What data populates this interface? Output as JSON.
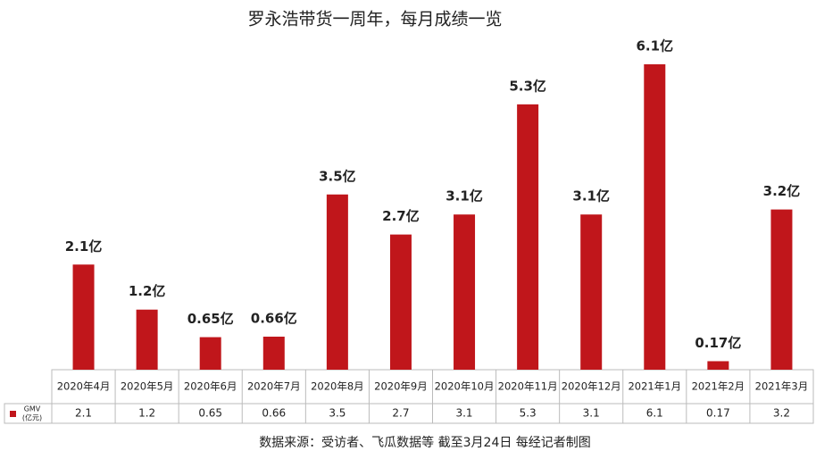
{
  "chart_data": {
    "type": "bar",
    "title": "罗永浩带货一周年，每月成绩一览",
    "categories": [
      "2020年4月",
      "2020年5月",
      "2020年6月",
      "2020年7月",
      "2020年8月",
      "2020年9月",
      "2020年10月",
      "2020年11月",
      "2020年12月",
      "2021年1月",
      "2021年2月",
      "2021年3月"
    ],
    "series": [
      {
        "name": "GMV",
        "unit": "(亿元)",
        "color": "#c0161b",
        "values": [
          2.1,
          1.2,
          0.65,
          0.66,
          3.5,
          2.7,
          3.1,
          5.3,
          3.1,
          6.1,
          0.17,
          3.2
        ],
        "value_labels": [
          "2.1亿",
          "1.2亿",
          "0.65亿",
          "0.66亿",
          "3.5亿",
          "2.7亿",
          "3.1亿",
          "5.3亿",
          "3.1亿",
          "6.1亿",
          "0.17亿",
          "3.2亿"
        ]
      }
    ],
    "source": "数据来源：受访者、飞瓜数据等 截至3月24日 每经记者制图"
  }
}
